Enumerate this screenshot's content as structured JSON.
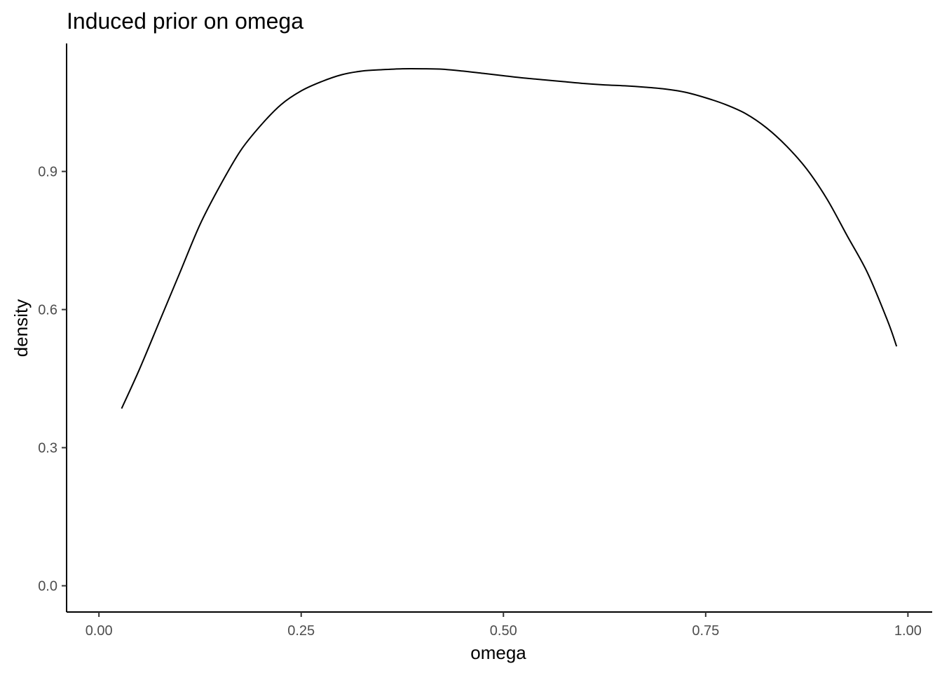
{
  "chart_data": {
    "type": "line",
    "title": "Induced prior on omega",
    "xlabel": "omega",
    "ylabel": "density",
    "xlim": [
      -0.04,
      1.03
    ],
    "ylim": [
      -0.057,
      1.178
    ],
    "x_ticks": [
      0.0,
      0.25,
      0.5,
      0.75,
      1.0
    ],
    "x_tick_labels": [
      "0.00",
      "0.25",
      "0.50",
      "0.75",
      "1.00"
    ],
    "y_ticks": [
      0.0,
      0.3,
      0.6,
      0.9
    ],
    "y_tick_labels": [
      "0.0",
      "0.3",
      "0.6",
      "0.9"
    ],
    "grid": false,
    "legend": "none",
    "series": [
      {
        "color": "#000000",
        "x": [
          0.028,
          0.05,
          0.075,
          0.1,
          0.125,
          0.15,
          0.175,
          0.2,
          0.225,
          0.25,
          0.275,
          0.3,
          0.325,
          0.35,
          0.375,
          0.4,
          0.425,
          0.45,
          0.475,
          0.5,
          0.525,
          0.55,
          0.575,
          0.6,
          0.625,
          0.65,
          0.675,
          0.7,
          0.725,
          0.75,
          0.775,
          0.8,
          0.825,
          0.85,
          0.875,
          0.9,
          0.925,
          0.95,
          0.975,
          0.986
        ],
        "y": [
          0.385,
          0.47,
          0.575,
          0.68,
          0.785,
          0.87,
          0.945,
          1.0,
          1.045,
          1.075,
          1.095,
          1.11,
          1.118,
          1.121,
          1.123,
          1.123,
          1.122,
          1.118,
          1.113,
          1.108,
          1.103,
          1.099,
          1.095,
          1.091,
          1.088,
          1.086,
          1.083,
          1.079,
          1.072,
          1.06,
          1.045,
          1.025,
          0.995,
          0.955,
          0.905,
          0.84,
          0.76,
          0.68,
          0.575,
          0.52
        ]
      }
    ]
  }
}
